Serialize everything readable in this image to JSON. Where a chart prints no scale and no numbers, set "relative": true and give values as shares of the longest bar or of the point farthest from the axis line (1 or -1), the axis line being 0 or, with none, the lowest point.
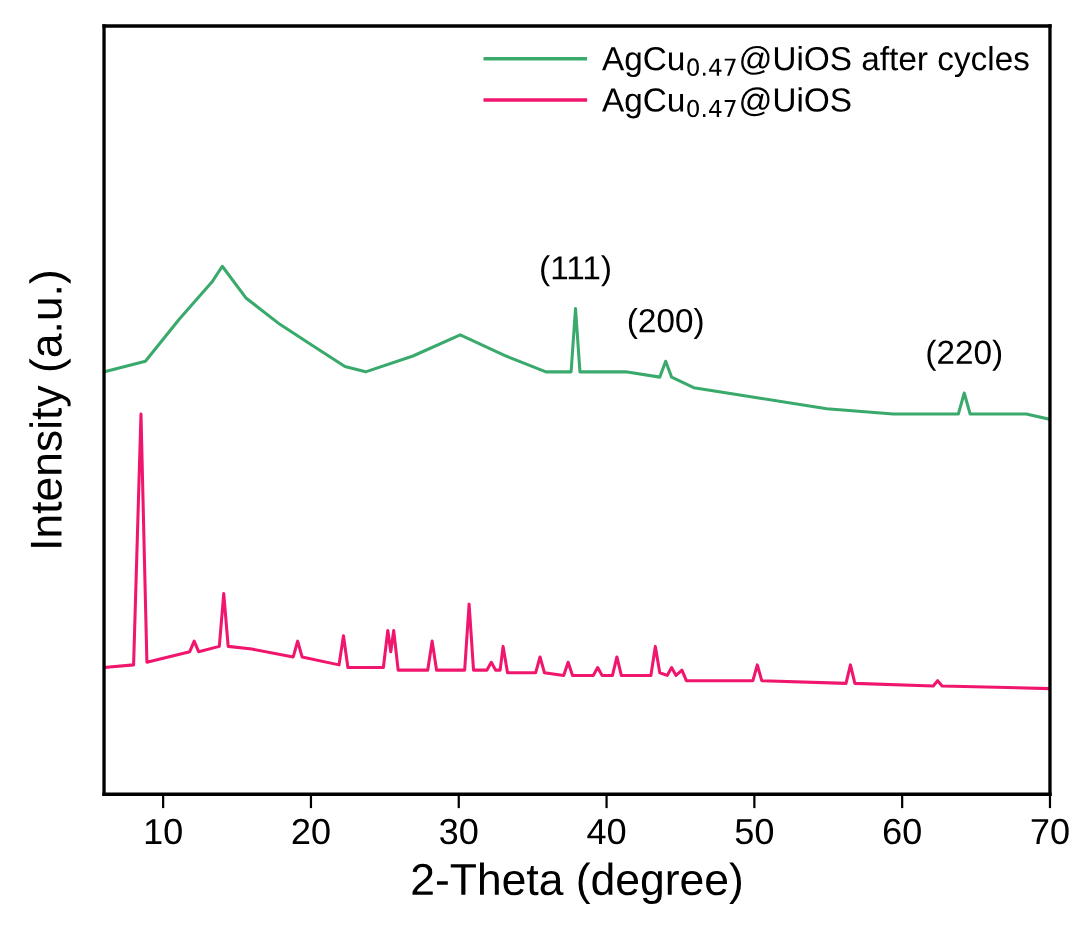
{
  "chart_data": {
    "type": "line",
    "relative": true,
    "xlabel": "2-Theta (degree)",
    "ylabel": "Intensity (a.u.)",
    "xlim": [
      6,
      70
    ],
    "xticks": [
      10,
      20,
      30,
      40,
      50,
      60,
      70
    ],
    "tick_labels": "x",
    "grid": false,
    "legend": "top right",
    "line_style": "solid",
    "marker": "none",
    "series": [
      {
        "name": "AgCu$_{0.47}$@UiOS after cycles",
        "color": "#3aaa6c",
        "x": [
          6,
          8.8,
          11.1,
          13.3,
          14,
          15.6,
          17.9,
          20.1,
          22.3,
          23.7,
          26.9,
          30.1,
          33.2,
          35.9,
          37.6,
          37.9,
          38.2,
          39.5,
          41.3,
          43.6,
          44.0,
          44.4,
          45.9,
          50.4,
          54.9,
          59.4,
          63.8,
          64.2,
          64.6,
          68.4,
          70
        ],
        "values": [
          0.8,
          0.82,
          0.9,
          0.97,
          1.0,
          0.94,
          0.89,
          0.85,
          0.81,
          0.8,
          0.83,
          0.87,
          0.83,
          0.8,
          0.8,
          0.92,
          0.8,
          0.8,
          0.8,
          0.79,
          0.82,
          0.79,
          0.77,
          0.75,
          0.73,
          0.72,
          0.72,
          0.76,
          0.72,
          0.72,
          0.71
        ]
      },
      {
        "name": "AgCu$_{0.47}$@UiOS",
        "color": "#f0166e",
        "x": [
          6,
          8.0,
          8.5,
          8.9,
          11.8,
          12.1,
          12.4,
          13.8,
          14.1,
          14.4,
          16,
          18.8,
          19.1,
          19.4,
          21.9,
          22.2,
          22.5,
          24.9,
          25.2,
          25.4,
          25.6,
          25.9,
          27.9,
          28.2,
          28.5,
          30.4,
          30.7,
          31.0,
          31.9,
          32.2,
          32.5,
          32.8,
          33.0,
          33.3,
          35.2,
          35.5,
          35.8,
          37.1,
          37.4,
          37.7,
          39.1,
          39.4,
          39.7,
          40.4,
          40.7,
          41.0,
          43.0,
          43.3,
          43.6,
          44.1,
          44.4,
          44.7,
          45.1,
          45.4,
          49.9,
          50.2,
          50.5,
          56.2,
          56.5,
          56.8,
          62.1,
          62.4,
          62.7,
          70
        ],
        "values": [
          0.24,
          0.245,
          0.72,
          0.25,
          0.27,
          0.29,
          0.27,
          0.28,
          0.38,
          0.28,
          0.275,
          0.26,
          0.29,
          0.26,
          0.245,
          0.3,
          0.24,
          0.24,
          0.31,
          0.27,
          0.31,
          0.235,
          0.235,
          0.29,
          0.235,
          0.235,
          0.36,
          0.235,
          0.235,
          0.25,
          0.235,
          0.235,
          0.28,
          0.23,
          0.23,
          0.26,
          0.23,
          0.225,
          0.25,
          0.225,
          0.225,
          0.24,
          0.225,
          0.225,
          0.26,
          0.225,
          0.225,
          0.28,
          0.23,
          0.225,
          0.24,
          0.225,
          0.235,
          0.215,
          0.215,
          0.245,
          0.215,
          0.21,
          0.245,
          0.21,
          0.205,
          0.215,
          0.205,
          0.2
        ]
      }
    ],
    "annotations": [
      {
        "text": "(111)",
        "x": 37.9,
        "y": 0.92
      },
      {
        "text": "(200)",
        "x": 44.0,
        "y": 0.82
      },
      {
        "text": "(220)",
        "x": 64.2,
        "y": 0.76
      }
    ]
  }
}
